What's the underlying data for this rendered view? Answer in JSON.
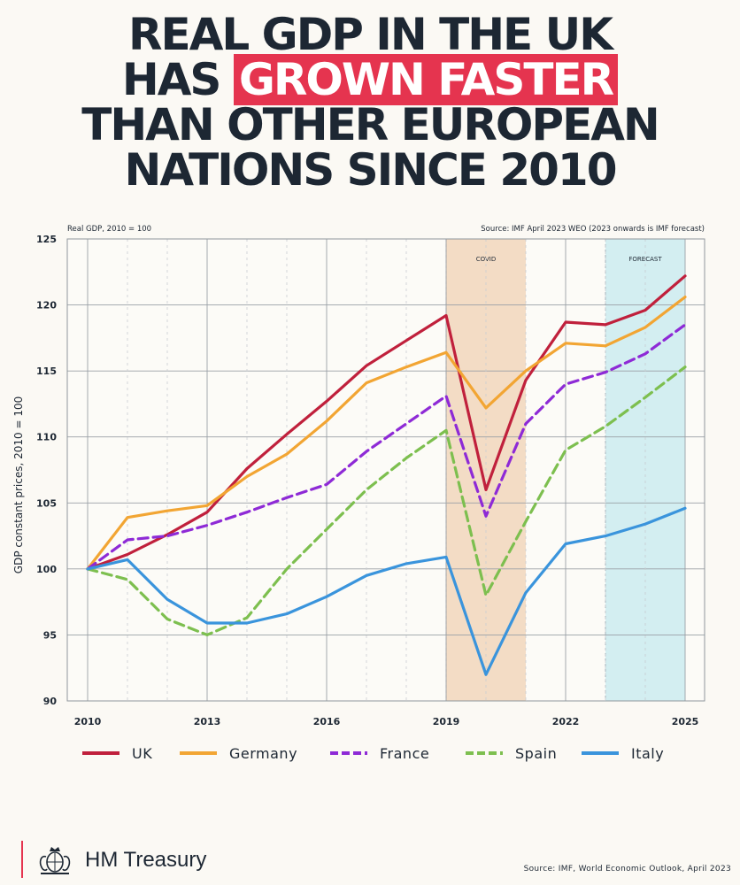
{
  "headline": {
    "line1": "REAL GDP IN THE UK",
    "line2_pre": "HAS ",
    "line2_highlight": "GROWN FASTER",
    "line3": "THAN OTHER EUROPEAN",
    "line4": "NATIONS SINCE 2010",
    "highlight_color": "#e5344f"
  },
  "footer": {
    "brand": "HM Treasury",
    "source": "Source: IMF, World Economic Outlook, April 2023",
    "accent_color": "#e5344f"
  },
  "chart_data": {
    "type": "line",
    "subtitle": "Real GDP, 2010 = 100",
    "source_note": "Source: IMF April 2023 WEO (2023 onwards is IMF forecast)",
    "ylabel": "GDP constant prices, 2010 = 100",
    "xlabel": "",
    "ylim": [
      90,
      125
    ],
    "xlim": [
      2010,
      2025
    ],
    "yticks": [
      90,
      95,
      100,
      105,
      110,
      115,
      120,
      125
    ],
    "xticks": [
      2010,
      2013,
      2016,
      2019,
      2022,
      2025
    ],
    "grid": true,
    "legend_position": "bottom",
    "shaded_regions": [
      {
        "label": "COVID",
        "from": 2019,
        "to": 2021,
        "color": "#f3dcc5"
      },
      {
        "label": "FORECAST",
        "from": 2023,
        "to": 2025,
        "color": "#d3eef1"
      }
    ],
    "x": [
      2010,
      2011,
      2012,
      2013,
      2014,
      2015,
      2016,
      2017,
      2018,
      2019,
      2020,
      2021,
      2022,
      2023,
      2024,
      2025
    ],
    "series": [
      {
        "name": "UK",
        "color": "#c0203c",
        "dashed": false,
        "values": [
          100,
          101.1,
          102.6,
          104.3,
          107.6,
          110.2,
          112.7,
          115.4,
          117.3,
          119.2,
          106.0,
          114.3,
          118.7,
          118.5,
          119.6,
          122.2
        ]
      },
      {
        "name": "Germany",
        "color": "#f2a533",
        "dashed": false,
        "values": [
          100,
          103.9,
          104.4,
          104.8,
          107.0,
          108.7,
          111.2,
          114.1,
          115.3,
          116.4,
          112.2,
          115.0,
          117.1,
          116.9,
          118.3,
          120.6
        ]
      },
      {
        "name": "France",
        "color": "#8e2ad6",
        "dashed": true,
        "values": [
          100,
          102.2,
          102.5,
          103.3,
          104.3,
          105.4,
          106.4,
          108.9,
          111.0,
          113.1,
          104.0,
          111.0,
          114.0,
          114.9,
          116.3,
          118.5
        ]
      },
      {
        "name": "Spain",
        "color": "#7dbf4f",
        "dashed": true,
        "values": [
          100,
          99.2,
          96.2,
          95.0,
          96.3,
          100.0,
          103.0,
          106.0,
          108.4,
          110.5,
          98.0,
          103.6,
          109.0,
          110.8,
          113.0,
          115.3
        ]
      },
      {
        "name": "Italy",
        "color": "#3a94dc",
        "dashed": false,
        "values": [
          100,
          100.7,
          97.7,
          95.9,
          95.9,
          96.6,
          97.9,
          99.5,
          100.4,
          100.9,
          92.0,
          98.2,
          101.9,
          102.5,
          103.4,
          104.6
        ]
      }
    ]
  }
}
